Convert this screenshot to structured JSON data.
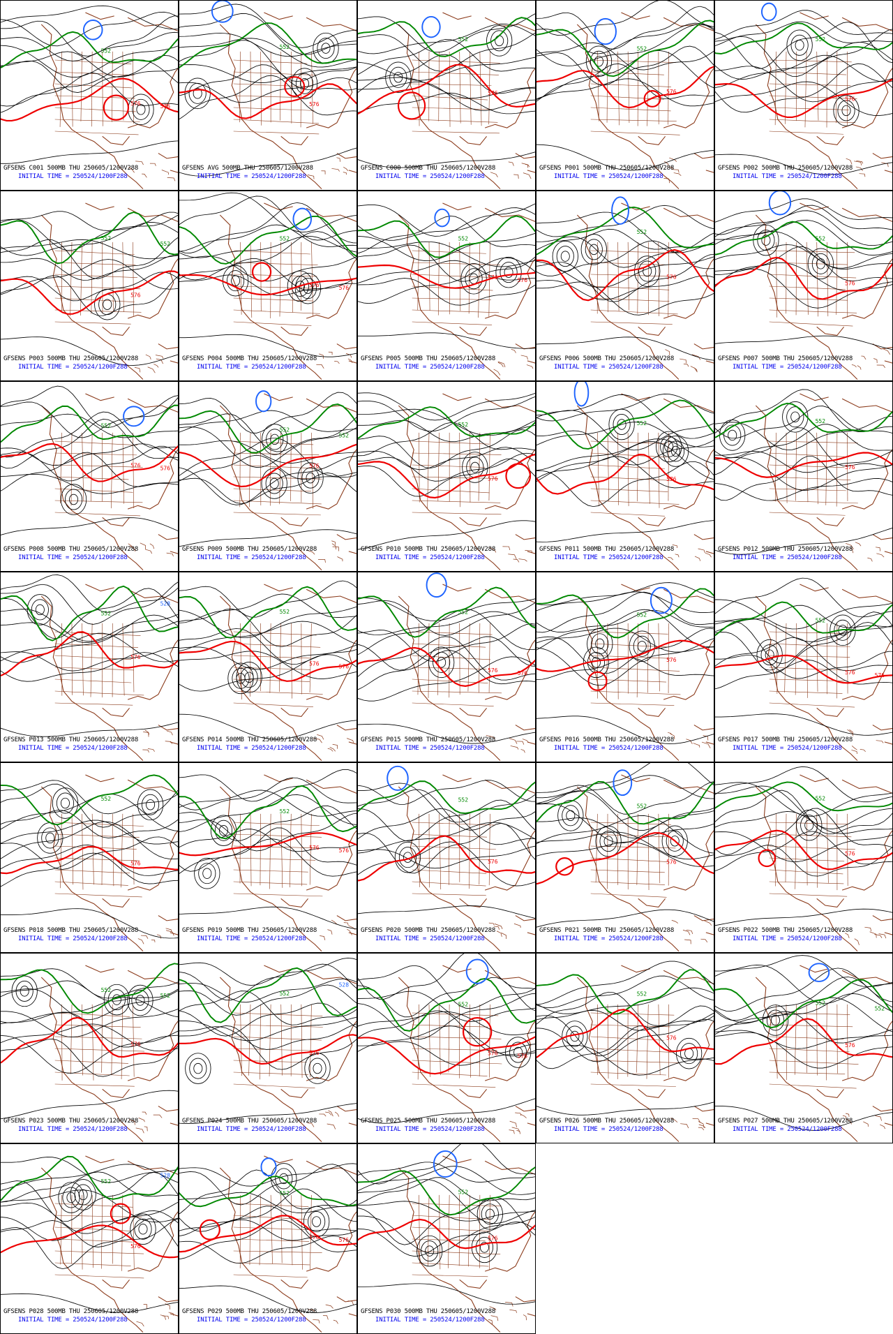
{
  "colors": {
    "contour": "#000000",
    "contour_576": "#ee0000",
    "contour_552": "#008800",
    "contour_528": "#1e64ff",
    "coast": "#8b3a1a",
    "caption_line1": "#000000",
    "caption_line2": "#0000ee"
  },
  "panels": [
    {
      "member": "C001",
      "caption": "GFSENS C001 500MB THU 250605/1200V288",
      "init": "INITIAL TIME = 250524/1200F288",
      "labels": [
        "552",
        "576",
        "576"
      ]
    },
    {
      "member": "AVG",
      "caption": "GFSENS AVG 500MB THU 250605/1200V288",
      "init": "INITIAL TIME = 250524/1200F288",
      "labels": [
        "552",
        "576"
      ]
    },
    {
      "member": "C000",
      "caption": "GFSENS C000 500MB THU 250605/1200V288",
      "init": "INITIAL TIME = 250524/1200F288",
      "labels": [
        "552",
        "576"
      ]
    },
    {
      "member": "P001",
      "caption": "GFSENS P001 500MB THU 250605/1200V288",
      "init": "INITIAL TIME = 250524/1200F288",
      "labels": [
        "552",
        "576"
      ]
    },
    {
      "member": "P002",
      "caption": "GFSENS P002 500MB THU 250605/1200V288",
      "init": "INITIAL TIME = 250524/1200F288",
      "labels": [
        "552",
        "576"
      ]
    },
    {
      "member": "P003",
      "caption": "GFSENS P003 500MB THU 250605/1200V288",
      "init": "INITIAL TIME = 250524/1200F288",
      "labels": [
        "552",
        "576",
        "552"
      ]
    },
    {
      "member": "P004",
      "caption": "GFSENS P004 500MB THU 250605/1200V288",
      "init": "INITIAL TIME = 250524/1200F288",
      "labels": [
        "552",
        "576",
        "576"
      ]
    },
    {
      "member": "P005",
      "caption": "GFSENS P005 500MB THU 250605/1200V288",
      "init": "INITIAL TIME = 250524/1200F288",
      "labels": [
        "552",
        "576",
        "576"
      ]
    },
    {
      "member": "P006",
      "caption": "GFSENS P006 500MB THU 250605/1200V288",
      "init": "INITIAL TIME = 250524/1200F288",
      "labels": [
        "552",
        "576"
      ]
    },
    {
      "member": "P007",
      "caption": "GFSENS P007 500MB THU 250605/1200V288",
      "init": "INITIAL TIME = 250524/1200F288",
      "labels": [
        "552",
        "576"
      ]
    },
    {
      "member": "P008",
      "caption": "GFSENS P008 500MB THU 250605/1200V288",
      "init": "INITIAL TIME = 250524/1200F288",
      "labels": [
        "552",
        "576",
        "576"
      ]
    },
    {
      "member": "P009",
      "caption": "GFSENS P009 500MB THU 250605/1200V288",
      "init": "INITIAL TIME = 250524/1200F288",
      "labels": [
        "552",
        "576",
        "552"
      ]
    },
    {
      "member": "P010",
      "caption": "GFSENS P010 500MB THU 250605/1200V288",
      "init": "INITIAL TIME = 250524/1200F288",
      "labels": [
        "552",
        "576"
      ]
    },
    {
      "member": "P011",
      "caption": "GFSENS P011 500MB THU 250605/1200V288",
      "init": "INITIAL TIME = 250524/1200F288",
      "labels": [
        "552",
        "576"
      ]
    },
    {
      "member": "P012",
      "caption": "GFSENS P012 500MB THU 250605/1200V288",
      "init": "INITIAL TIME = 250524/1200F288",
      "labels": [
        "552",
        "576"
      ]
    },
    {
      "member": "P013",
      "caption": "GFSENS P013 500MB THU 250605/1200V288",
      "init": "INITIAL TIME = 250524/1200F288",
      "labels": [
        "552",
        "576",
        "528"
      ]
    },
    {
      "member": "P014",
      "caption": "GFSENS P014 500MB THU 250605/1200V288",
      "init": "INITIAL TIME = 250524/1200F288",
      "labels": [
        "552",
        "576",
        "576"
      ]
    },
    {
      "member": "P015",
      "caption": "GFSENS P015 500MB THU 250605/1200V288",
      "init": "INITIAL TIME = 250524/1200F288",
      "labels": [
        "552",
        "576",
        "576"
      ]
    },
    {
      "member": "P016",
      "caption": "GFSENS P016 500MB THU 250605/1200V288",
      "init": "INITIAL TIME = 250524/1200F288",
      "labels": [
        "552",
        "576"
      ]
    },
    {
      "member": "P017",
      "caption": "GFSENS P017 500MB THU 250605/1200V288",
      "init": "INITIAL TIME = 250524/1200F288",
      "labels": [
        "552",
        "576",
        "576"
      ]
    },
    {
      "member": "P018",
      "caption": "GFSENS P018 500MB THU 250605/1200V288",
      "init": "INITIAL TIME = 250524/1200F288",
      "labels": [
        "552",
        "576"
      ]
    },
    {
      "member": "P019",
      "caption": "GFSENS P019 500MB THU 250605/1200V288",
      "init": "INITIAL TIME = 250524/1200F288",
      "labels": [
        "552",
        "576",
        "576"
      ]
    },
    {
      "member": "P020",
      "caption": "GFSENS P020 500MB THU 250605/1200V288",
      "init": "INITIAL TIME = 250524/1200F288",
      "labels": [
        "552",
        "576"
      ]
    },
    {
      "member": "P021",
      "caption": "GFSENS P021 500MB THU 250605/1200V288",
      "init": "INITIAL TIME = 250524/1200F288",
      "labels": [
        "552",
        "576"
      ]
    },
    {
      "member": "P022",
      "caption": "GFSENS P022 500MB THU 250605/1200V288",
      "init": "INITIAL TIME = 250524/1200F288",
      "labels": [
        "552",
        "576"
      ]
    },
    {
      "member": "P023",
      "caption": "GFSENS P023 500MB THU 250605/1200V288",
      "init": "INITIAL TIME = 250524/1200F288",
      "labels": [
        "552",
        "576",
        "552"
      ]
    },
    {
      "member": "P024",
      "caption": "GFSENS P024 500MB THU 250605/1200V288",
      "init": "INITIAL TIME = 250524/1200F288",
      "labels": [
        "552",
        "576",
        "528"
      ]
    },
    {
      "member": "P025",
      "caption": "GFSENS P025 500MB THU 250605/1200V288",
      "init": "INITIAL TIME = 250524/1200F288",
      "labels": [
        "552",
        "576",
        "576"
      ]
    },
    {
      "member": "P026",
      "caption": "GFSENS P026 500MB THU 250605/1200V288",
      "init": "INITIAL TIME = 250524/1200F288",
      "labels": [
        "552",
        "576"
      ]
    },
    {
      "member": "P027",
      "caption": "GFSENS P027 500MB THU 250605/1200V288",
      "init": "INITIAL TIME = 250524/1200F288",
      "labels": [
        "552",
        "576",
        "552"
      ]
    },
    {
      "member": "P028",
      "caption": "GFSENS P028 500MB THU 250605/1200V288",
      "init": "INITIAL TIME = 250524/1200F288",
      "labels": [
        "552",
        "576",
        "528"
      ]
    },
    {
      "member": "P029",
      "caption": "GFSENS P029 500MB THU 250605/1200V288",
      "init": "INITIAL TIME = 250524/1200F288",
      "labels": [
        "552",
        "576",
        "576"
      ]
    },
    {
      "member": "P030",
      "caption": "GFSENS P030 500MB THU 250605/1200V288",
      "init": "INITIAL TIME = 250524/1200F288",
      "labels": [
        "552",
        "576"
      ]
    }
  ]
}
